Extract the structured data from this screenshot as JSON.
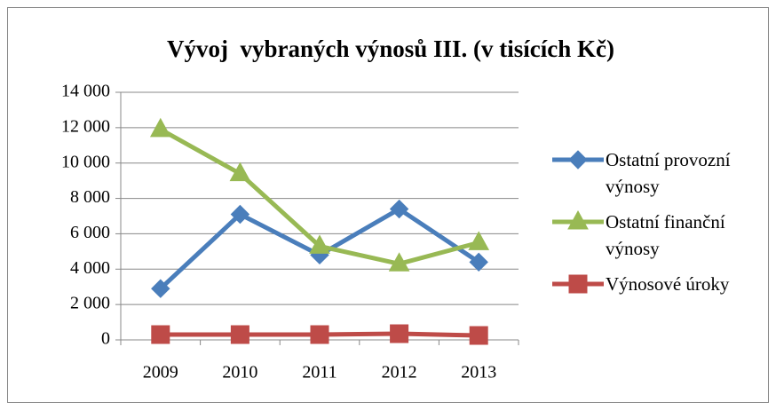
{
  "chart_data": {
    "type": "line",
    "title": "Vývoj  vybraných výnosů III. (v tisících Kč)",
    "categories": [
      "2009",
      "2010",
      "2011",
      "2012",
      "2013"
    ],
    "series": [
      {
        "name": "Ostatní provozní výnosy",
        "color": "#4a7ebb",
        "marker": "diamond",
        "values": [
          2900,
          7100,
          4800,
          7400,
          4400
        ]
      },
      {
        "name": "Ostatní finanční výnosy",
        "color": "#98b954",
        "marker": "triangle",
        "values": [
          11900,
          9400,
          5300,
          4300,
          5500
        ]
      },
      {
        "name": "Výnosové úroky",
        "color": "#be4b48",
        "marker": "square",
        "values": [
          300,
          300,
          300,
          350,
          250
        ]
      }
    ],
    "ylim": [
      0,
      14000
    ],
    "yticks": [
      0,
      {
        "value": 2000,
        "label": "2 000"
      },
      {
        "value": 4000,
        "label": "4 000"
      },
      {
        "value": 6000,
        "label": "6 000"
      },
      {
        "value": 8000,
        "label": "8 000"
      },
      {
        "value": 10000,
        "label": "10 000"
      },
      {
        "value": 12000,
        "label": "12 000"
      },
      {
        "value": 14000,
        "label": "14 000"
      }
    ],
    "grid": true,
    "legend": "right"
  }
}
